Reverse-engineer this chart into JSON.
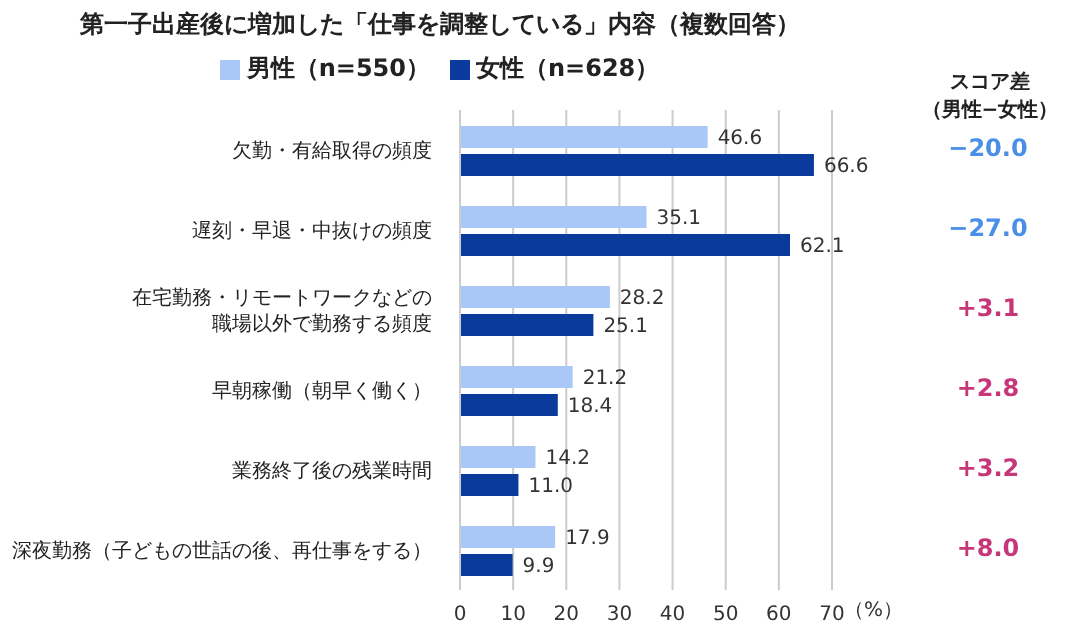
{
  "chart_data": {
    "type": "bar",
    "orientation": "horizontal",
    "title": "第一子出産後に増加した「仕事を調整している」内容（複数回答）",
    "xlabel": "（%）",
    "categories": [
      "欠勤・有給取得の頻度",
      "遅刻・早退・中抜けの頻度",
      "在宅勤務・リモートワークなどの職場以外で勤務する頻度",
      "早朝稼働（朝早く働く）",
      "業務終了後の残業時間",
      "深夜勤務（子どもの世話の後、再仕事をする）"
    ],
    "series": [
      {
        "name": "男性（n=550）",
        "color": "#a9c8f8",
        "values": [
          46.6,
          35.1,
          28.2,
          21.2,
          14.2,
          17.9
        ],
        "value_labels": [
          "46.6",
          "35.1",
          "28.2",
          "21.2",
          "14.2",
          "17.9"
        ]
      },
      {
        "name": "女性（n=628）",
        "color": "#0a3a9c",
        "values": [
          66.6,
          62.1,
          25.1,
          18.4,
          11.0,
          9.9
        ],
        "value_labels": [
          "66.6",
          "62.1",
          "25.1",
          "18.4",
          "11.0",
          "9.9"
        ]
      }
    ],
    "xlim": [
      0,
      70
    ],
    "xticks": [
      0,
      10,
      20,
      30,
      40,
      50,
      60,
      70
    ],
    "grid": "x",
    "legend": "top",
    "annotations": [
      "スコア差（男性−女性）",
      "−20.0",
      "−27.0",
      "+3.1",
      "+2.8",
      "+3.2",
      "+8.0"
    ]
  }
}
